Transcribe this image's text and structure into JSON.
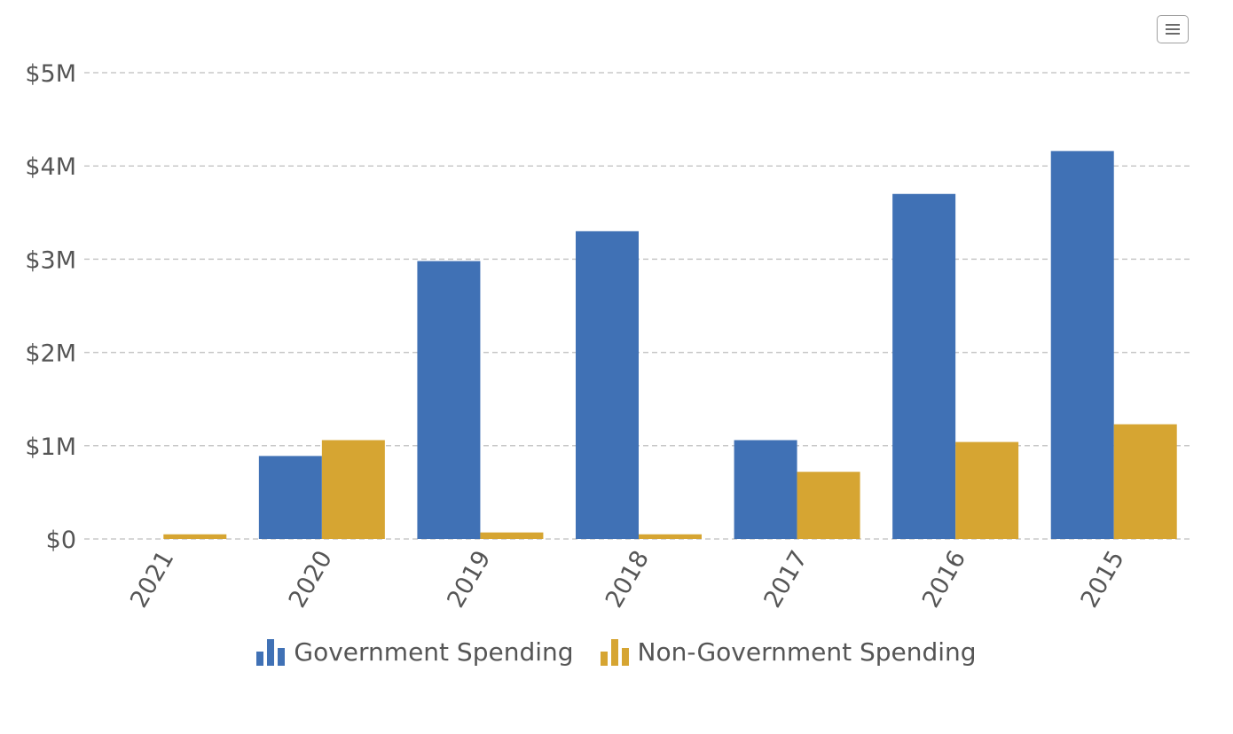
{
  "toolbar": {
    "menu_icon": "hamburger-menu-icon"
  },
  "colors": {
    "government": "#4071b5",
    "non_government": "#d6a532",
    "grid": "#c8c8c8",
    "axis_text": "#555555"
  },
  "legend": {
    "items": [
      {
        "label": "Government Spending",
        "color": "#4071b5",
        "icon": "bar-chart-icon"
      },
      {
        "label": "Non-Government Spending",
        "color": "#d6a532",
        "icon": "bar-chart-icon"
      }
    ],
    "placement": "bottom-center"
  },
  "chart_data": {
    "type": "bar",
    "title": "",
    "xlabel": "",
    "ylabel": "",
    "categories": [
      "2021",
      "2020",
      "2019",
      "2018",
      "2017",
      "2016",
      "2015"
    ],
    "series": [
      {
        "name": "Government Spending",
        "color": "#4071b5",
        "values": [
          0,
          890000,
          2980000,
          3300000,
          1060000,
          3700000,
          4160000
        ]
      },
      {
        "name": "Non-Government Spending",
        "color": "#d6a532",
        "values": [
          50000,
          1060000,
          70000,
          50000,
          720000,
          1040000,
          1230000
        ]
      }
    ],
    "ylim": [
      0,
      5000000
    ],
    "yticks": [
      0,
      1000000,
      2000000,
      3000000,
      4000000,
      5000000
    ],
    "ytick_labels": [
      "$0",
      "$1M",
      "$2M",
      "$3M",
      "$4M",
      "$5M"
    ],
    "grid": true,
    "grid_style": "dashed",
    "legend_position": "bottom",
    "xtick_rotation": -60
  }
}
